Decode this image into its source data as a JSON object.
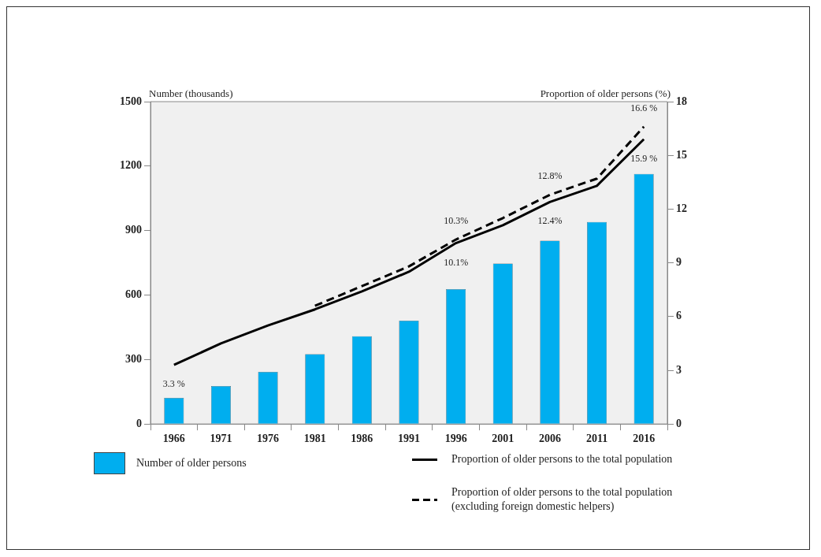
{
  "chart_data": {
    "type": "bar",
    "categories": [
      "1966",
      "1971",
      "1976",
      "1981",
      "1986",
      "1991",
      "1996",
      "2001",
      "2006",
      "2011",
      "2016"
    ],
    "ylabel": "Number (thousands)",
    "y2label": "Proportion of older persons (%)",
    "ylim": [
      0,
      1500
    ],
    "yticks": [
      0,
      300,
      600,
      900,
      1200,
      1500
    ],
    "y2lim": [
      0,
      18
    ],
    "y2ticks": [
      0,
      3,
      6,
      9,
      12,
      15,
      18
    ],
    "grid": false,
    "legend": "bottom",
    "series": [
      {
        "name": "Number of older persons",
        "color": "#00aeef",
        "values": [
          122,
          177,
          243,
          325,
          409,
          481,
          628,
          747,
          853,
          940,
          1164
        ]
      },
      {
        "name": "Proportion of older persons to the total population",
        "type": "line",
        "axis": "y2",
        "color": "#000000",
        "line_style": "solid",
        "values": [
          3.3,
          4.5,
          5.5,
          6.4,
          7.4,
          8.5,
          10.1,
          11.1,
          12.4,
          13.3,
          15.9
        ],
        "value_labels": [
          "3.3 %",
          null,
          null,
          null,
          null,
          null,
          "10.1%",
          null,
          "12.4%",
          null,
          "15.9 %"
        ]
      },
      {
        "name": "Proportion of older persons to the total population (excluding foreign domestic helpers)",
        "type": "line",
        "axis": "y2",
        "color": "#000000",
        "line_style": "dashed",
        "values": [
          null,
          null,
          null,
          6.6,
          7.7,
          8.8,
          10.3,
          11.5,
          12.8,
          13.7,
          16.6
        ],
        "value_labels": [
          null,
          null,
          null,
          null,
          null,
          null,
          "10.3%",
          null,
          "12.8%",
          null,
          "16.6 %"
        ]
      }
    ]
  }
}
